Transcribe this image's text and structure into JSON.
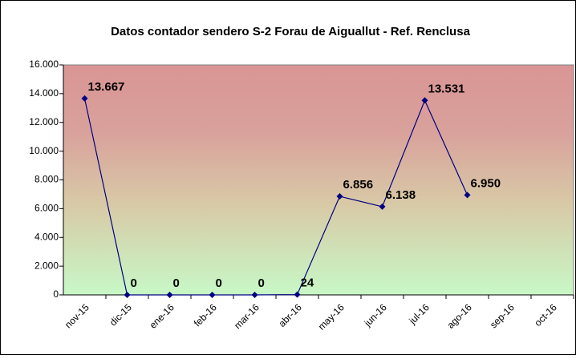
{
  "chart_data": {
    "type": "line",
    "title": "Datos contador sendero S-2 Forau de Aiguallut - Ref. Renclusa",
    "categories": [
      "nov-15",
      "dic-15",
      "ene-16",
      "feb-16",
      "mar-16",
      "abr-16",
      "may-16",
      "jun-16",
      "jul-16",
      "ago-16",
      "sep-16",
      "oct-16"
    ],
    "series": [
      {
        "color": "#000080",
        "values": [
          13667,
          0,
          0,
          0,
          0,
          24,
          6856,
          6138,
          13531,
          6950,
          null,
          null
        ],
        "value_labels": [
          "13.667",
          "0",
          "0",
          "0",
          "0",
          "24",
          "6.856",
          "6.138",
          "13.531",
          "6.950",
          null,
          null
        ]
      }
    ],
    "ylim": [
      0,
      16000
    ],
    "yticks": [
      0,
      {
        "value": 2000,
        "label": "2.000"
      },
      {
        "value": 4000,
        "label": "4.000"
      },
      {
        "value": 6000,
        "label": "6.000"
      },
      {
        "value": 8000,
        "label": "8.000"
      },
      {
        "value": 10000,
        "label": "10.000"
      },
      {
        "value": 12000,
        "label": "12.000"
      },
      {
        "value": 14000,
        "label": "14.000"
      },
      {
        "value": 16000,
        "label": "16.000"
      }
    ]
  }
}
